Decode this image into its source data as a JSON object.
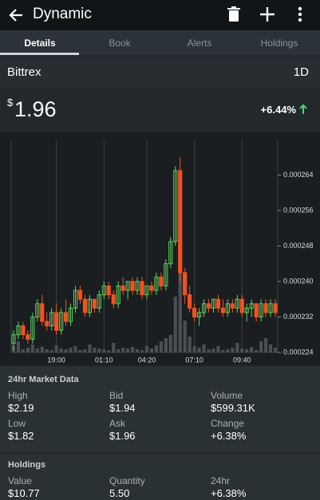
{
  "header": {
    "title": "Dynamic"
  },
  "tabs": [
    "Details",
    "Book",
    "Alerts",
    "Holdings"
  ],
  "exchange": "Bittrex",
  "range": "1D",
  "price": {
    "currency": "$",
    "amount": "1.96"
  },
  "change": "+6.44%",
  "chart_data": {
    "type": "candlestick",
    "categories": [
      null,
      null,
      null,
      null,
      null,
      null,
      null,
      null,
      null,
      "19:00",
      null,
      null,
      null,
      null,
      null,
      null,
      null,
      null,
      null,
      "01:10",
      null,
      null,
      null,
      null,
      null,
      null,
      null,
      null,
      "04:20",
      null,
      null,
      null,
      null,
      null,
      null,
      null,
      null,
      null,
      "07:10",
      null,
      null,
      null,
      null,
      null,
      null,
      null,
      null,
      null,
      "09:40",
      null,
      null,
      null,
      null,
      null,
      null,
      null
    ],
    "open": [
      0.000226,
      0.000228,
      0.00023,
      0.000228,
      0.000227,
      0.000232,
      0.000235,
      0.000231,
      0.00023,
      0.000233,
      0.000229,
      0.000233,
      0.000231,
      0.000234,
      0.000238,
      0.000236,
      0.000233,
      0.000236,
      0.000234,
      0.000237,
      0.000239,
      0.000237,
      0.000235,
      0.000239,
      0.000238,
      0.00024,
      0.000238,
      0.00024,
      0.000237,
      0.000239,
      0.000238,
      0.000241,
      0.000239,
      0.000244,
      0.000249,
      0.000265,
      0.000242,
      0.000237,
      0.000234,
      0.000232,
      0.000233,
      0.000235,
      0.000234,
      0.000236,
      0.000234,
      0.000233,
      0.000235,
      0.000234,
      0.000236,
      0.000233,
      0.000234,
      0.000235,
      0.000232,
      0.000235,
      0.000233,
      0.000235
    ],
    "high": [
      0.000229,
      0.000231,
      0.000231,
      0.000229,
      0.000233,
      0.000236,
      0.000237,
      0.000233,
      0.000234,
      0.000235,
      0.000234,
      0.000236,
      0.000235,
      0.000239,
      0.000239,
      0.000237,
      0.000237,
      0.000236,
      0.000238,
      0.00024,
      0.00024,
      0.000238,
      0.00024,
      0.000241,
      0.00024,
      0.000241,
      0.000241,
      0.000241,
      0.000239,
      0.00024,
      0.000242,
      0.000242,
      0.000245,
      0.00025,
      0.000266,
      0.000268,
      0.000243,
      0.000239,
      0.000235,
      0.000234,
      0.000236,
      0.000236,
      0.000236,
      0.000237,
      0.000236,
      0.000236,
      0.000236,
      0.000237,
      0.000237,
      0.000235,
      0.000236,
      0.000235,
      0.000236,
      0.000236,
      0.000236,
      0.000236
    ],
    "low": [
      0.0002245,
      0.000227,
      0.000227,
      0.000226,
      0.000226,
      0.000231,
      0.00023,
      0.000229,
      0.000229,
      0.000228,
      0.000228,
      0.00023,
      0.00023,
      0.000233,
      0.000235,
      0.000232,
      0.000232,
      0.000233,
      0.000233,
      0.000236,
      0.000236,
      0.000234,
      0.000234,
      0.000237,
      0.000236,
      0.000237,
      0.000237,
      0.000236,
      0.000236,
      0.000237,
      0.000237,
      0.000238,
      0.000238,
      0.000243,
      0.000248,
      0.00024,
      0.000235,
      0.000233,
      0.000231,
      0.00023,
      0.000232,
      0.000233,
      0.000233,
      0.000233,
      0.000232,
      0.000232,
      0.000233,
      0.000233,
      0.000232,
      0.000231,
      0.000232,
      0.000231,
      0.000231,
      0.000232,
      0.000232,
      0.000232
    ],
    "close": [
      0.000228,
      0.00023,
      0.000228,
      0.000227,
      0.000232,
      0.000235,
      0.000231,
      0.00023,
      0.000233,
      0.000229,
      0.000233,
      0.000231,
      0.000234,
      0.000238,
      0.000236,
      0.000233,
      0.000236,
      0.000234,
      0.000237,
      0.000239,
      0.000237,
      0.000235,
      0.000239,
      0.000238,
      0.00024,
      0.000238,
      0.00024,
      0.000237,
      0.000239,
      0.000238,
      0.000241,
      0.000239,
      0.000244,
      0.000249,
      0.000265,
      0.000242,
      0.000237,
      0.000234,
      0.000232,
      0.000233,
      0.000235,
      0.000234,
      0.000236,
      0.000234,
      0.000233,
      0.000235,
      0.000234,
      0.000236,
      0.000233,
      0.000234,
      0.000235,
      0.000232,
      0.000235,
      0.000233,
      0.000235,
      0.000233
    ],
    "volume": [
      8,
      14,
      4,
      6,
      10,
      5,
      7,
      4,
      3,
      9,
      5,
      4,
      6,
      8,
      3,
      4,
      10,
      6,
      5,
      4,
      3,
      12,
      4,
      6,
      5,
      7,
      4,
      3,
      8,
      5,
      9,
      14,
      18,
      22,
      70,
      100,
      40,
      20,
      8,
      6,
      10,
      4,
      5,
      8,
      3,
      4,
      6,
      12,
      5,
      4,
      7,
      3,
      14,
      18,
      10,
      6
    ],
    "ylim": [
      0.000224,
      0.000272
    ],
    "yticks": [
      0.000224,
      0.000232,
      {
        "value": 0.00024,
        "label": "0.000240"
      },
      0.000248,
      0.000256,
      0.000264
    ],
    "up_color": "#5fcf5f",
    "down_color": "#f4511e",
    "grid": true
  },
  "market_data": {
    "title": "24hr Market Data",
    "items": [
      {
        "label": "High",
        "value": "$2.19"
      },
      {
        "label": "Bid",
        "value": "$1.94"
      },
      {
        "label": "Volume",
        "value": "$599.31K"
      },
      {
        "label": "Low",
        "value": "$1.82"
      },
      {
        "label": "Ask",
        "value": "$1.96"
      },
      {
        "label": "Change",
        "value": "+6.38%"
      }
    ]
  },
  "holdings": {
    "title": "Holdings",
    "items": [
      {
        "label": "Value",
        "value": "$10.77"
      },
      {
        "label": "Quantity",
        "value": "5.50"
      },
      {
        "label": "24hr",
        "value": "+6.38%"
      }
    ]
  }
}
